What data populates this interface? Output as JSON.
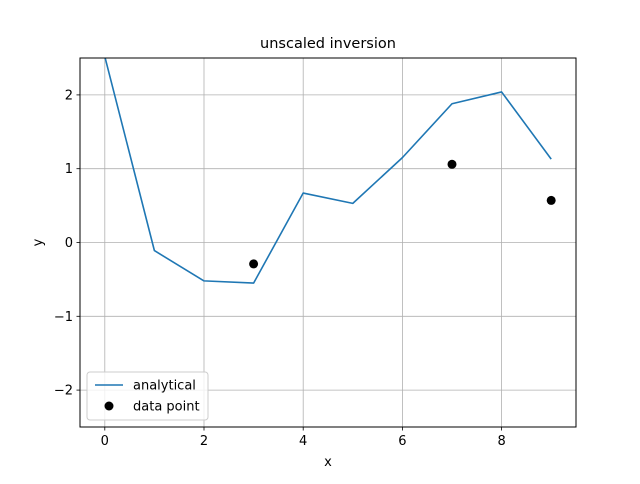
{
  "chart_data": {
    "type": "line",
    "title": "unscaled inversion",
    "xlabel": "x",
    "ylabel": "y",
    "xlim": [
      -0.5,
      9.5
    ],
    "ylim": [
      -2.5,
      2.5
    ],
    "xticks": [
      0,
      2,
      4,
      6,
      8
    ],
    "yticks": [
      -2,
      -1,
      0,
      1,
      2
    ],
    "xtick_labels": [
      "0",
      "2",
      "4",
      "6",
      "8"
    ],
    "ytick_labels": [
      "−2",
      "−1",
      "0",
      "1",
      "2"
    ],
    "grid": true,
    "legend_position": "lower-left",
    "series": [
      {
        "name": "analytical",
        "kind": "line",
        "color": "#1f77b4",
        "x": [
          0,
          1,
          2,
          3,
          4,
          5,
          6,
          7,
          8,
          9
        ],
        "y": [
          2.52,
          -0.11,
          -0.52,
          -0.55,
          0.67,
          0.53,
          1.15,
          1.88,
          2.04,
          1.13
        ]
      },
      {
        "name": "data point",
        "kind": "scatter",
        "color": "#000000",
        "x": [
          3,
          7,
          9
        ],
        "y": [
          -0.29,
          1.06,
          0.57
        ]
      }
    ]
  }
}
